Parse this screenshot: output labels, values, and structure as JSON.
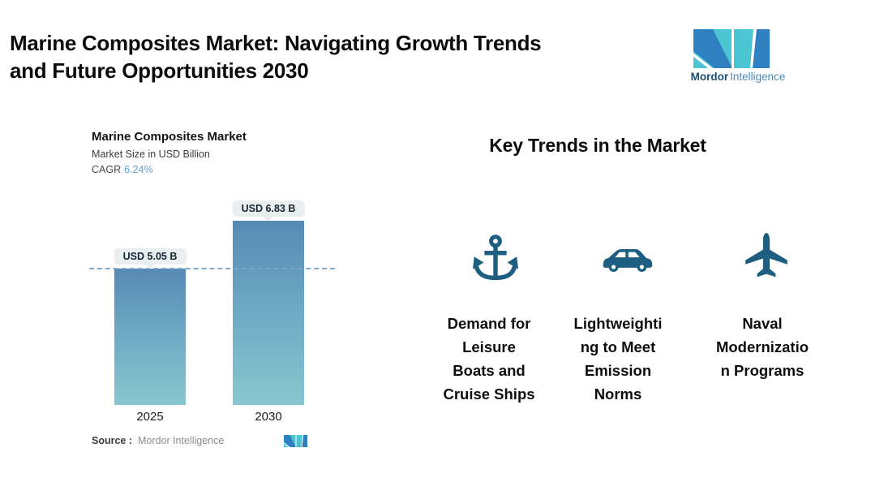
{
  "page": {
    "title": "Marine Composites Market: Navigating Growth Trends\nand Future Opportunities 2030",
    "background_color": "#ffffff"
  },
  "brand": {
    "name_bold": "Mordor",
    "name_light": "Intelligence",
    "logo_teal": "#4cc5d2",
    "logo_blue": "#2e80c1",
    "text_dark_blue": "#1c4f78",
    "text_light_blue": "#4d8cb8"
  },
  "chart_data": {
    "type": "bar",
    "title": "Marine Composites Market",
    "subtitle": "Market Size in USD Billion",
    "ylabel": "Market Size in USD Billion",
    "cagr": {
      "label": "CAGR",
      "value": "6.24%"
    },
    "categories": [
      "2025",
      "2030"
    ],
    "values": [
      5.05,
      6.83
    ],
    "value_labels": [
      "USD 5.05 B",
      "USD 6.83 B"
    ],
    "reference_line_value": 5.05,
    "legend": "none",
    "grid": "off",
    "bar_gradient_top": "#578ab4",
    "bar_gradient_bottom": "#87c7cf",
    "reference_line_color": "#7aa7ca",
    "badge_background": "#e9eff1",
    "source": {
      "label": "Source :",
      "value": "Mordor Intelligence"
    }
  },
  "trends": {
    "heading": "Key Trends in the Market",
    "icon_color": "#1e5e80",
    "items": [
      {
        "icon": "anchor-icon",
        "label": "Demand for\nLeisure\nBoats and\nCruise Ships"
      },
      {
        "icon": "car-icon",
        "label": "Lightweighti\nng to Meet\nEmission\nNorms"
      },
      {
        "icon": "plane-icon",
        "label": "Naval\nModernizatio\nn Programs"
      }
    ]
  }
}
